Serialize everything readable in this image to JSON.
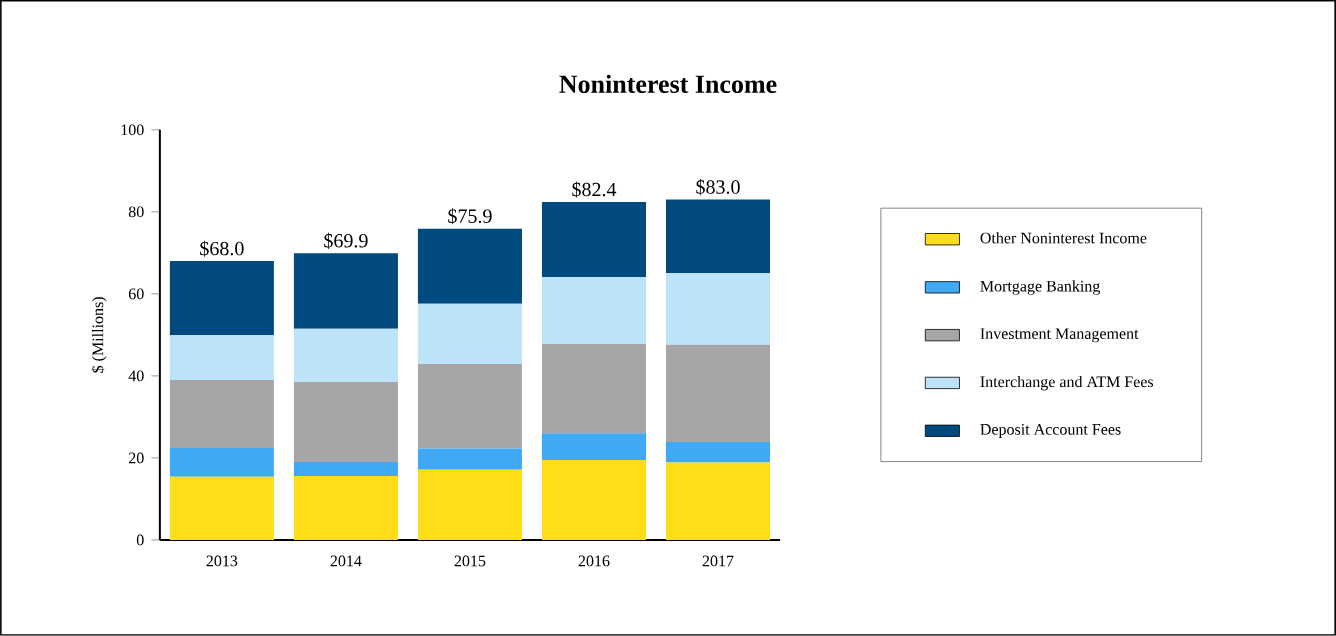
{
  "chart_data": {
    "type": "bar",
    "stacked": true,
    "title": "Noninterest Income",
    "ylabel": "$ (Millions)",
    "categories": [
      "2013",
      "2014",
      "2015",
      "2016",
      "2017"
    ],
    "series": [
      {
        "name": "Other Noninterest Income",
        "color": "#ffde17",
        "values": [
          15.4,
          15.6,
          17.1,
          19.5,
          18.9
        ]
      },
      {
        "name": "Mortgage Banking",
        "color": "#3fa9f5",
        "values": [
          7.0,
          3.4,
          5.2,
          6.5,
          5.0
        ]
      },
      {
        "name": "Investment Management",
        "color": "#a6a6a6",
        "values": [
          16.6,
          19.5,
          20.6,
          21.8,
          23.7
        ]
      },
      {
        "name": "Interchange and ATM Fees",
        "color": "#bde3fb",
        "values": [
          10.9,
          13.0,
          14.7,
          16.3,
          17.4
        ]
      },
      {
        "name": "Deposit Account Fees",
        "color": "#004a7f",
        "values": [
          18.1,
          18.4,
          18.3,
          18.3,
          18.0
        ]
      }
    ],
    "totals": [
      "$68.0",
      "$69.9",
      "$75.9",
      "$82.4",
      "$83.0"
    ],
    "ylim": [
      0,
      100
    ],
    "yticks": [
      0,
      20,
      40,
      60,
      80,
      100
    ],
    "grid": false,
    "legend": "right"
  }
}
